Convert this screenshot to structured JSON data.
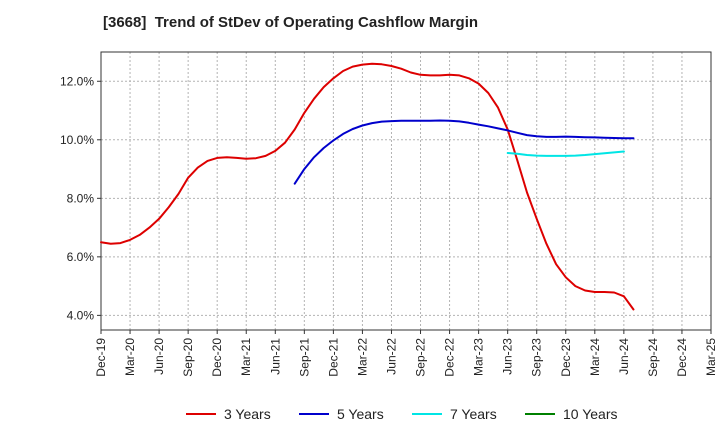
{
  "chart_data": {
    "type": "line",
    "title": "[3668]  Trend of StDev of Operating Cashflow Margin",
    "xlabel": "",
    "ylabel": "",
    "x_ticks": [
      "Dec-19",
      "Mar-20",
      "Jun-20",
      "Sep-20",
      "Dec-20",
      "Mar-21",
      "Jun-21",
      "Sep-21",
      "Dec-21",
      "Mar-22",
      "Jun-22",
      "Sep-22",
      "Dec-22",
      "Mar-23",
      "Jun-23",
      "Sep-23",
      "Dec-23",
      "Mar-24",
      "Jun-24",
      "Sep-24",
      "Dec-24",
      "Mar-25"
    ],
    "y_ticks": [
      "4.0%",
      "6.0%",
      "8.0%",
      "10.0%",
      "12.0%"
    ],
    "y_tick_values": [
      4,
      6,
      8,
      10,
      12
    ],
    "ylim": [
      3.5,
      13.0
    ],
    "grid": true,
    "legend_position": "bottom",
    "series": [
      {
        "name": "3 Years",
        "color": "#dd0000",
        "points": [
          [
            "Dec-19",
            6.5
          ],
          [
            "Jan-20",
            6.45
          ],
          [
            "Feb-20",
            6.47
          ],
          [
            "Mar-20",
            6.58
          ],
          [
            "Apr-20",
            6.75
          ],
          [
            "May-20",
            7.0
          ],
          [
            "Jun-20",
            7.3
          ],
          [
            "Jul-20",
            7.7
          ],
          [
            "Aug-20",
            8.15
          ],
          [
            "Sep-20",
            8.7
          ],
          [
            "Oct-20",
            9.05
          ],
          [
            "Nov-20",
            9.28
          ],
          [
            "Dec-20",
            9.38
          ],
          [
            "Jan-21",
            9.4
          ],
          [
            "Feb-21",
            9.38
          ],
          [
            "Mar-21",
            9.35
          ],
          [
            "Apr-21",
            9.37
          ],
          [
            "May-21",
            9.45
          ],
          [
            "Jun-21",
            9.62
          ],
          [
            "Jul-21",
            9.9
          ],
          [
            "Aug-21",
            10.35
          ],
          [
            "Sep-21",
            10.92
          ],
          [
            "Oct-21",
            11.4
          ],
          [
            "Nov-21",
            11.8
          ],
          [
            "Dec-21",
            12.1
          ],
          [
            "Jan-22",
            12.35
          ],
          [
            "Feb-22",
            12.5
          ],
          [
            "Mar-22",
            12.57
          ],
          [
            "Apr-22",
            12.6
          ],
          [
            "May-22",
            12.58
          ],
          [
            "Jun-22",
            12.52
          ],
          [
            "Jul-22",
            12.43
          ],
          [
            "Aug-22",
            12.3
          ],
          [
            "Sep-22",
            12.22
          ],
          [
            "Oct-22",
            12.2
          ],
          [
            "Nov-22",
            12.2
          ],
          [
            "Dec-22",
            12.22
          ],
          [
            "Jan-23",
            12.2
          ],
          [
            "Feb-23",
            12.1
          ],
          [
            "Mar-23",
            11.92
          ],
          [
            "Apr-23",
            11.6
          ],
          [
            "May-23",
            11.1
          ],
          [
            "Jun-23",
            10.35
          ],
          [
            "Jul-23",
            9.3
          ],
          [
            "Aug-23",
            8.2
          ],
          [
            "Sep-23",
            7.3
          ],
          [
            "Oct-23",
            6.45
          ],
          [
            "Nov-23",
            5.75
          ],
          [
            "Dec-23",
            5.3
          ],
          [
            "Jan-24",
            5.0
          ],
          [
            "Feb-24",
            4.85
          ],
          [
            "Mar-24",
            4.8
          ],
          [
            "Apr-24",
            4.8
          ],
          [
            "May-24",
            4.78
          ],
          [
            "Jun-24",
            4.65
          ],
          [
            "Jul-24",
            4.2
          ]
        ]
      },
      {
        "name": "5 Years",
        "color": "#0000cc",
        "points": [
          [
            "Aug-21",
            8.5
          ],
          [
            "Sep-21",
            9.0
          ],
          [
            "Oct-21",
            9.4
          ],
          [
            "Nov-21",
            9.72
          ],
          [
            "Dec-21",
            9.98
          ],
          [
            "Jan-22",
            10.2
          ],
          [
            "Feb-22",
            10.37
          ],
          [
            "Mar-22",
            10.49
          ],
          [
            "Apr-22",
            10.57
          ],
          [
            "May-22",
            10.62
          ],
          [
            "Jun-22",
            10.64
          ],
          [
            "Jul-22",
            10.65
          ],
          [
            "Aug-22",
            10.65
          ],
          [
            "Sep-22",
            10.65
          ],
          [
            "Oct-22",
            10.65
          ],
          [
            "Nov-22",
            10.66
          ],
          [
            "Dec-22",
            10.65
          ],
          [
            "Jan-23",
            10.63
          ],
          [
            "Feb-23",
            10.58
          ],
          [
            "Mar-23",
            10.52
          ],
          [
            "Apr-23",
            10.46
          ],
          [
            "May-23",
            10.39
          ],
          [
            "Jun-23",
            10.32
          ],
          [
            "Jul-23",
            10.24
          ],
          [
            "Aug-23",
            10.16
          ],
          [
            "Sep-23",
            10.12
          ],
          [
            "Oct-23",
            10.1
          ],
          [
            "Nov-23",
            10.1
          ],
          [
            "Dec-23",
            10.11
          ],
          [
            "Jan-24",
            10.1
          ],
          [
            "Feb-24",
            10.09
          ],
          [
            "Mar-24",
            10.08
          ],
          [
            "Apr-24",
            10.07
          ],
          [
            "May-24",
            10.06
          ],
          [
            "Jun-24",
            10.05
          ],
          [
            "Jul-24",
            10.05
          ]
        ]
      },
      {
        "name": "7 Years",
        "color": "#00e5e5",
        "points": [
          [
            "Jun-23",
            9.55
          ],
          [
            "Jul-23",
            9.52
          ],
          [
            "Aug-23",
            9.48
          ],
          [
            "Sep-23",
            9.46
          ],
          [
            "Oct-23",
            9.45
          ],
          [
            "Nov-23",
            9.45
          ],
          [
            "Dec-23",
            9.45
          ],
          [
            "Jan-24",
            9.46
          ],
          [
            "Feb-24",
            9.48
          ],
          [
            "Mar-24",
            9.51
          ],
          [
            "Apr-24",
            9.54
          ],
          [
            "May-24",
            9.57
          ],
          [
            "Jun-24",
            9.6
          ]
        ]
      },
      {
        "name": "10 Years",
        "color": "#008000",
        "points": []
      }
    ]
  }
}
